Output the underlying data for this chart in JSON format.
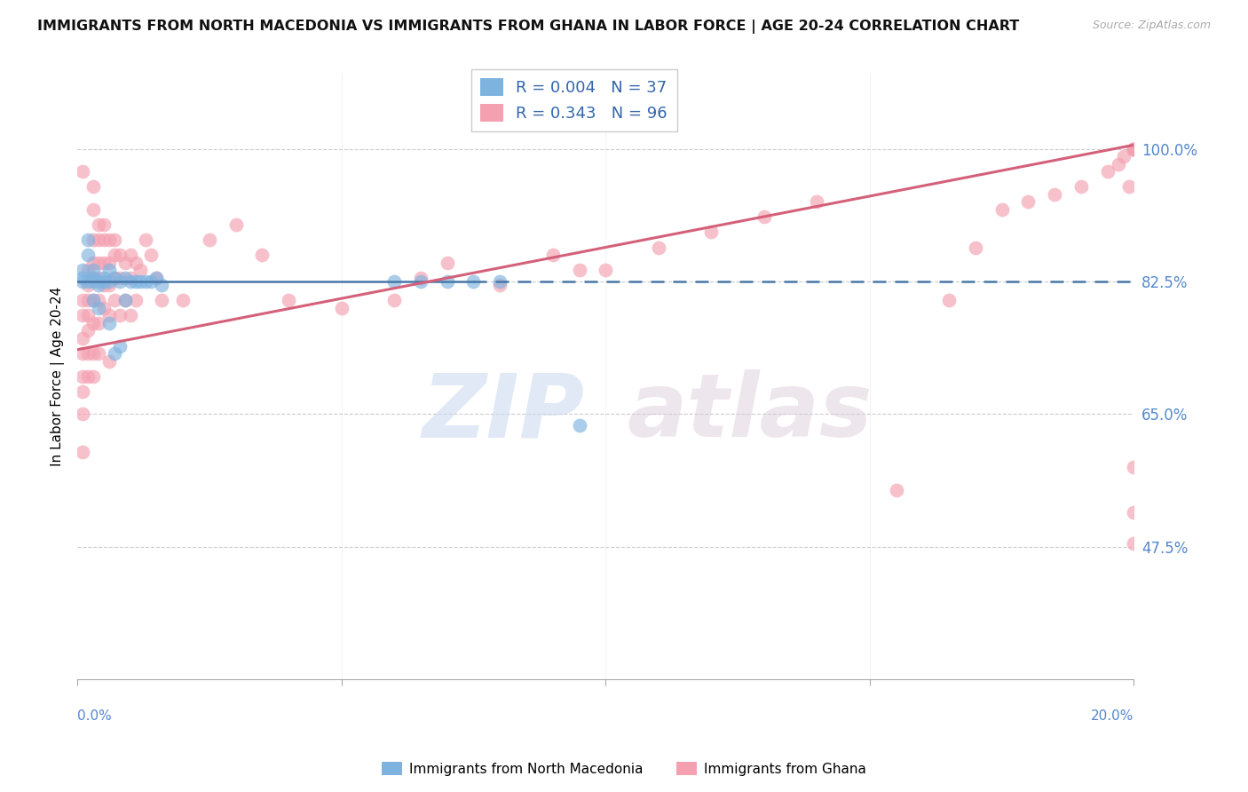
{
  "title": "IMMIGRANTS FROM NORTH MACEDONIA VS IMMIGRANTS FROM GHANA IN LABOR FORCE | AGE 20-24 CORRELATION CHART",
  "source": "Source: ZipAtlas.com",
  "ylabel": "In Labor Force | Age 20-24",
  "yticks_pct": [
    47.5,
    65.0,
    82.5,
    100.0
  ],
  "ytick_labels": [
    "47.5%",
    "65.0%",
    "82.5%",
    "100.0%"
  ],
  "xlim": [
    0.0,
    0.2
  ],
  "ylim": [
    0.3,
    1.1
  ],
  "blue_R": 0.004,
  "blue_N": 37,
  "pink_R": 0.343,
  "pink_N": 96,
  "blue_color": "#7eb3e0",
  "pink_color": "#f4a0b0",
  "blue_line_color": "#4878a8",
  "pink_line_color": "#d4607a",
  "blue_line_y": 0.825,
  "blue_line_solid_end": 0.075,
  "pink_line_y0": 0.735,
  "pink_line_y1": 1.005,
  "legend_blue_label": "Immigrants from North Macedonia",
  "legend_pink_label": "Immigrants from Ghana",
  "watermark_zip": "ZIP",
  "watermark_atlas": "atlas",
  "blue_scatter_x": [
    0.001,
    0.001,
    0.001,
    0.002,
    0.002,
    0.002,
    0.003,
    0.003,
    0.003,
    0.003,
    0.004,
    0.004,
    0.004,
    0.005,
    0.005,
    0.006,
    0.006,
    0.006,
    0.007,
    0.007,
    0.008,
    0.008,
    0.009,
    0.009,
    0.01,
    0.011,
    0.012,
    0.013,
    0.014,
    0.015,
    0.016,
    0.06,
    0.065,
    0.07,
    0.075,
    0.08,
    0.095
  ],
  "blue_scatter_y": [
    0.825,
    0.83,
    0.84,
    0.825,
    0.86,
    0.88,
    0.825,
    0.83,
    0.84,
    0.8,
    0.825,
    0.82,
    0.79,
    0.825,
    0.83,
    0.77,
    0.825,
    0.84,
    0.73,
    0.83,
    0.74,
    0.825,
    0.83,
    0.8,
    0.825,
    0.825,
    0.825,
    0.825,
    0.825,
    0.83,
    0.82,
    0.825,
    0.825,
    0.825,
    0.825,
    0.825,
    0.635
  ],
  "pink_scatter_x": [
    0.001,
    0.001,
    0.001,
    0.001,
    0.001,
    0.001,
    0.001,
    0.001,
    0.001,
    0.002,
    0.002,
    0.002,
    0.002,
    0.002,
    0.002,
    0.002,
    0.003,
    0.003,
    0.003,
    0.003,
    0.003,
    0.003,
    0.003,
    0.003,
    0.003,
    0.004,
    0.004,
    0.004,
    0.004,
    0.004,
    0.004,
    0.004,
    0.005,
    0.005,
    0.005,
    0.005,
    0.005,
    0.006,
    0.006,
    0.006,
    0.006,
    0.006,
    0.007,
    0.007,
    0.007,
    0.007,
    0.008,
    0.008,
    0.008,
    0.009,
    0.009,
    0.01,
    0.01,
    0.01,
    0.011,
    0.011,
    0.012,
    0.013,
    0.014,
    0.015,
    0.016,
    0.02,
    0.025,
    0.03,
    0.035,
    0.04,
    0.05,
    0.06,
    0.065,
    0.07,
    0.08,
    0.09,
    0.095,
    0.1,
    0.11,
    0.12,
    0.13,
    0.14,
    0.155,
    0.165,
    0.17,
    0.175,
    0.18,
    0.185,
    0.19,
    0.195,
    0.197,
    0.198,
    0.199,
    0.2,
    0.2,
    0.2,
    0.2,
    0.2,
    0.2,
    0.2
  ],
  "pink_scatter_y": [
    0.8,
    0.78,
    0.75,
    0.73,
    0.7,
    0.68,
    0.65,
    0.6,
    0.97,
    0.84,
    0.82,
    0.8,
    0.78,
    0.76,
    0.73,
    0.7,
    0.95,
    0.92,
    0.88,
    0.85,
    0.83,
    0.8,
    0.77,
    0.73,
    0.7,
    0.9,
    0.88,
    0.85,
    0.83,
    0.8,
    0.77,
    0.73,
    0.9,
    0.88,
    0.85,
    0.82,
    0.79,
    0.88,
    0.85,
    0.82,
    0.78,
    0.72,
    0.88,
    0.86,
    0.83,
    0.8,
    0.86,
    0.83,
    0.78,
    0.85,
    0.8,
    0.86,
    0.83,
    0.78,
    0.85,
    0.8,
    0.84,
    0.88,
    0.86,
    0.83,
    0.8,
    0.8,
    0.88,
    0.9,
    0.86,
    0.8,
    0.79,
    0.8,
    0.83,
    0.85,
    0.82,
    0.86,
    0.84,
    0.84,
    0.87,
    0.89,
    0.91,
    0.93,
    0.55,
    0.8,
    0.87,
    0.92,
    0.93,
    0.94,
    0.95,
    0.97,
    0.98,
    0.99,
    0.95,
    1.0,
    1.0,
    1.0,
    1.0,
    0.58,
    0.48,
    0.52
  ]
}
